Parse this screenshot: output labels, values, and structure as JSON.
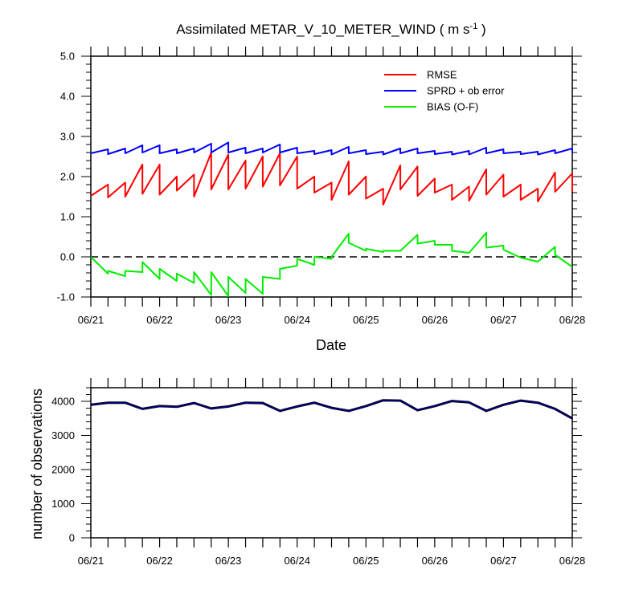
{
  "chart_data": [
    {
      "type": "line",
      "title": {
        "main": "Assimilated METAR_V_10_METER_WIND ( m s",
        "sup": "-1",
        "tail": " )"
      },
      "xlabel": "Date",
      "ylabel": "",
      "ylim": [
        -1.0,
        5.0
      ],
      "yticks": [
        "5.0",
        "4.0",
        "3.0",
        "2.0",
        "1.0",
        "0.0",
        "-1.0"
      ],
      "ytick_values": [
        5,
        4,
        3,
        2,
        1,
        0,
        -1
      ],
      "xticks": [
        "06/21",
        "06/22",
        "06/23",
        "06/24",
        "06/25",
        "06/26",
        "06/27",
        "06/28"
      ],
      "xlim_days": [
        0,
        7
      ],
      "zero_line": true,
      "legend_position": "top-right",
      "series": [
        {
          "name": "RMSE",
          "color": "#ff0000",
          "points": [
            [
              0.0,
              1.52
            ],
            [
              0.25,
              1.8
            ],
            [
              0.25,
              1.48
            ],
            [
              0.5,
              1.85
            ],
            [
              0.5,
              1.5
            ],
            [
              0.75,
              2.3
            ],
            [
              0.75,
              1.57
            ],
            [
              1.0,
              2.3
            ],
            [
              1.0,
              1.55
            ],
            [
              1.25,
              2.0
            ],
            [
              1.25,
              1.65
            ],
            [
              1.5,
              2.05
            ],
            [
              1.5,
              1.5
            ],
            [
              1.75,
              2.6
            ],
            [
              1.75,
              1.68
            ],
            [
              2.0,
              2.55
            ],
            [
              2.0,
              1.68
            ],
            [
              2.25,
              2.4
            ],
            [
              2.25,
              1.7
            ],
            [
              2.5,
              2.5
            ],
            [
              2.5,
              1.75
            ],
            [
              2.75,
              2.58
            ],
            [
              2.75,
              1.78
            ],
            [
              3.0,
              2.5
            ],
            [
              3.0,
              1.7
            ],
            [
              3.25,
              2.0
            ],
            [
              3.25,
              1.6
            ],
            [
              3.5,
              1.85
            ],
            [
              3.5,
              1.42
            ],
            [
              3.75,
              2.38
            ],
            [
              3.75,
              1.55
            ],
            [
              4.0,
              2.0
            ],
            [
              4.0,
              1.45
            ],
            [
              4.25,
              1.7
            ],
            [
              4.25,
              1.3
            ],
            [
              4.5,
              2.28
            ],
            [
              4.5,
              1.68
            ],
            [
              4.75,
              2.25
            ],
            [
              4.75,
              1.52
            ],
            [
              5.0,
              1.95
            ],
            [
              5.0,
              1.6
            ],
            [
              5.25,
              1.8
            ],
            [
              5.25,
              1.42
            ],
            [
              5.5,
              1.75
            ],
            [
              5.5,
              1.4
            ],
            [
              5.75,
              2.18
            ],
            [
              5.75,
              1.55
            ],
            [
              6.0,
              2.05
            ],
            [
              6.0,
              1.5
            ],
            [
              6.25,
              1.8
            ],
            [
              6.25,
              1.42
            ],
            [
              6.5,
              1.7
            ],
            [
              6.5,
              1.38
            ],
            [
              6.75,
              2.1
            ],
            [
              6.75,
              1.62
            ],
            [
              7.0,
              2.08
            ],
            [
              7.0,
              1.62
            ]
          ]
        },
        {
          "name": "SPRD + ob error",
          "color": "#0000ff",
          "points": [
            [
              0.0,
              2.58
            ],
            [
              0.25,
              2.68
            ],
            [
              0.25,
              2.56
            ],
            [
              0.5,
              2.7
            ],
            [
              0.5,
              2.58
            ],
            [
              0.75,
              2.78
            ],
            [
              0.75,
              2.6
            ],
            [
              1.0,
              2.78
            ],
            [
              1.0,
              2.58
            ],
            [
              1.25,
              2.68
            ],
            [
              1.25,
              2.58
            ],
            [
              1.5,
              2.7
            ],
            [
              1.5,
              2.6
            ],
            [
              1.75,
              2.82
            ],
            [
              1.75,
              2.6
            ],
            [
              2.0,
              2.85
            ],
            [
              2.0,
              2.6
            ],
            [
              2.25,
              2.72
            ],
            [
              2.25,
              2.58
            ],
            [
              2.5,
              2.7
            ],
            [
              2.5,
              2.6
            ],
            [
              2.75,
              2.8
            ],
            [
              2.75,
              2.6
            ],
            [
              3.0,
              2.72
            ],
            [
              3.0,
              2.58
            ],
            [
              3.25,
              2.64
            ],
            [
              3.25,
              2.56
            ],
            [
              3.5,
              2.66
            ],
            [
              3.5,
              2.55
            ],
            [
              3.75,
              2.74
            ],
            [
              3.75,
              2.58
            ],
            [
              4.0,
              2.66
            ],
            [
              4.0,
              2.56
            ],
            [
              4.25,
              2.62
            ],
            [
              4.25,
              2.55
            ],
            [
              4.5,
              2.7
            ],
            [
              4.5,
              2.58
            ],
            [
              4.75,
              2.7
            ],
            [
              4.75,
              2.58
            ],
            [
              5.0,
              2.64
            ],
            [
              5.0,
              2.56
            ],
            [
              5.25,
              2.62
            ],
            [
              5.25,
              2.55
            ],
            [
              5.5,
              2.64
            ],
            [
              5.5,
              2.55
            ],
            [
              5.75,
              2.72
            ],
            [
              5.75,
              2.58
            ],
            [
              6.0,
              2.68
            ],
            [
              6.0,
              2.58
            ],
            [
              6.25,
              2.62
            ],
            [
              6.25,
              2.56
            ],
            [
              6.5,
              2.62
            ],
            [
              6.5,
              2.55
            ],
            [
              6.75,
              2.66
            ],
            [
              6.75,
              2.58
            ],
            [
              7.0,
              2.7
            ],
            [
              7.0,
              2.6
            ]
          ]
        },
        {
          "name": "BIAS (O-F)",
          "color": "#00ee00",
          "points": [
            [
              0.0,
              0.0
            ],
            [
              0.25,
              -0.42
            ],
            [
              0.25,
              -0.35
            ],
            [
              0.5,
              -0.48
            ],
            [
              0.5,
              -0.35
            ],
            [
              0.75,
              -0.38
            ],
            [
              0.75,
              -0.13
            ],
            [
              1.0,
              -0.55
            ],
            [
              1.0,
              -0.3
            ],
            [
              1.25,
              -0.6
            ],
            [
              1.25,
              -0.42
            ],
            [
              1.5,
              -0.65
            ],
            [
              1.5,
              -0.38
            ],
            [
              1.75,
              -0.95
            ],
            [
              1.75,
              -0.38
            ],
            [
              2.0,
              -0.98
            ],
            [
              2.0,
              -0.5
            ],
            [
              2.25,
              -0.9
            ],
            [
              2.25,
              -0.55
            ],
            [
              2.5,
              -0.92
            ],
            [
              2.5,
              -0.5
            ],
            [
              2.75,
              -0.55
            ],
            [
              2.75,
              -0.3
            ],
            [
              3.0,
              -0.22
            ],
            [
              3.0,
              -0.05
            ],
            [
              3.25,
              -0.2
            ],
            [
              3.25,
              0.0
            ],
            [
              3.5,
              -0.05
            ],
            [
              3.5,
              0.0
            ],
            [
              3.75,
              0.58
            ],
            [
              3.75,
              0.35
            ],
            [
              4.0,
              0.15
            ],
            [
              4.0,
              0.2
            ],
            [
              4.25,
              0.12
            ],
            [
              4.25,
              0.15
            ],
            [
              4.5,
              0.15
            ],
            [
              4.75,
              0.55
            ],
            [
              4.75,
              0.33
            ],
            [
              5.0,
              0.4
            ],
            [
              5.0,
              0.3
            ],
            [
              5.25,
              0.3
            ],
            [
              5.25,
              0.15
            ],
            [
              5.5,
              0.1
            ],
            [
              5.75,
              0.6
            ],
            [
              5.75,
              0.23
            ],
            [
              6.0,
              0.28
            ],
            [
              6.0,
              0.18
            ],
            [
              6.25,
              -0.02
            ],
            [
              6.5,
              -0.12
            ],
            [
              6.75,
              0.25
            ],
            [
              6.75,
              0.05
            ],
            [
              7.0,
              -0.25
            ]
          ]
        }
      ]
    },
    {
      "type": "line",
      "title": "",
      "xlabel": "",
      "ylabel": "number of observations",
      "ylim": [
        0,
        4400
      ],
      "yticks": [
        "4000",
        "3000",
        "2000",
        "1000",
        "0"
      ],
      "ytick_values": [
        4000,
        3000,
        2000,
        1000,
        0
      ],
      "xticks": [
        "06/21",
        "06/22",
        "06/23",
        "06/24",
        "06/25",
        "06/26",
        "06/27",
        "06/28"
      ],
      "xlim_days": [
        0,
        7
      ],
      "series": [
        {
          "name": "observations",
          "color": "#000080",
          "points": [
            [
              0.0,
              3900
            ],
            [
              0.25,
              3960
            ],
            [
              0.5,
              3960
            ],
            [
              0.75,
              3780
            ],
            [
              1.0,
              3860
            ],
            [
              1.25,
              3840
            ],
            [
              1.5,
              3950
            ],
            [
              1.75,
              3790
            ],
            [
              2.0,
              3850
            ],
            [
              2.25,
              3960
            ],
            [
              2.5,
              3950
            ],
            [
              2.75,
              3720
            ],
            [
              3.0,
              3850
            ],
            [
              3.25,
              3960
            ],
            [
              3.5,
              3810
            ],
            [
              3.75,
              3720
            ],
            [
              4.0,
              3860
            ],
            [
              4.25,
              4030
            ],
            [
              4.5,
              4020
            ],
            [
              4.75,
              3740
            ],
            [
              5.0,
              3860
            ],
            [
              5.25,
              4010
            ],
            [
              5.5,
              3970
            ],
            [
              5.75,
              3720
            ],
            [
              6.0,
              3900
            ],
            [
              6.25,
              4020
            ],
            [
              6.5,
              3960
            ],
            [
              6.75,
              3780
            ],
            [
              7.0,
              3500
            ]
          ]
        }
      ]
    }
  ]
}
